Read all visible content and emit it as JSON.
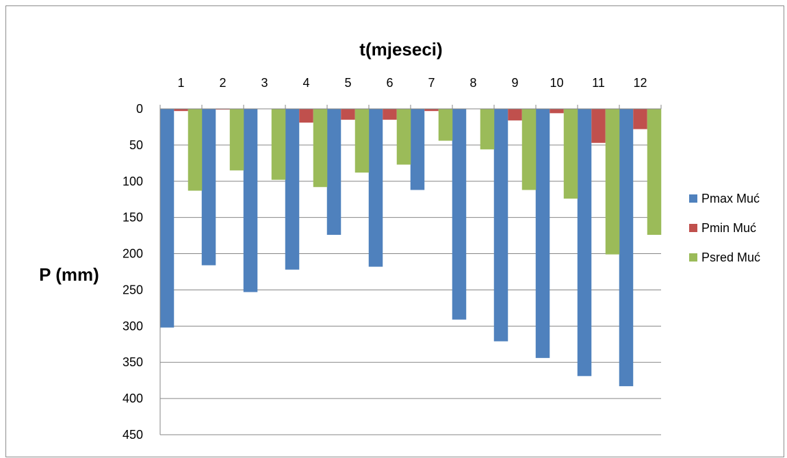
{
  "chart_data": {
    "type": "bar",
    "title": "t(mjeseci)",
    "xlabel": "",
    "ylabel": "P (mm)",
    "categories": [
      "1",
      "2",
      "3",
      "4",
      "5",
      "6",
      "7",
      "8",
      "9",
      "10",
      "11",
      "12"
    ],
    "x_axis_position": "top",
    "y_axis_inverted": true,
    "ylim": [
      0,
      450
    ],
    "yticks": [
      0,
      50,
      100,
      150,
      200,
      250,
      300,
      350,
      400,
      450
    ],
    "grid": true,
    "legend": "right",
    "series": [
      {
        "name": "Pmax Muć",
        "color": "#4f81bd",
        "values": [
          302,
          216,
          253,
          222,
          174,
          218,
          112,
          291,
          321,
          344,
          369,
          383
        ]
      },
      {
        "name": "Pmin Muć",
        "color": "#c0504d",
        "values": [
          3,
          1,
          0,
          19,
          15,
          15,
          3,
          0,
          16,
          6,
          47,
          28
        ]
      },
      {
        "name": "Psred Muć",
        "color": "#9bbb59",
        "values": [
          113,
          85,
          98,
          108,
          88,
          77,
          44,
          56,
          112,
          124,
          201,
          174
        ]
      }
    ]
  }
}
